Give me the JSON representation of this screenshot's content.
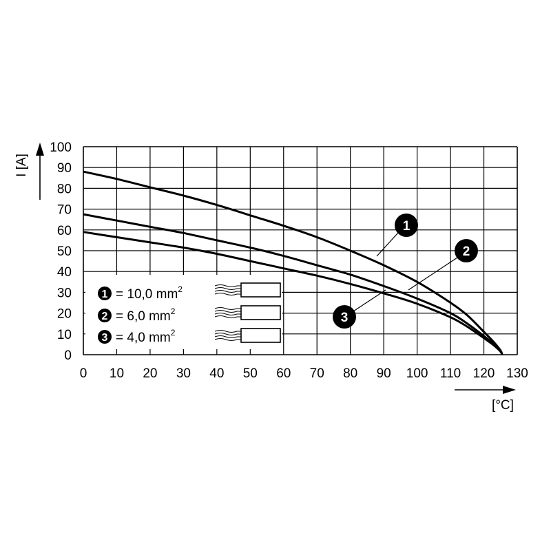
{
  "chart_data": {
    "type": "line",
    "xlabel": "[°C]",
    "ylabel": "I [A]",
    "xlim": [
      0,
      130
    ],
    "ylim": [
      0,
      100
    ],
    "x_ticks": [
      "0",
      "10",
      "20",
      "30",
      "40",
      "50",
      "60",
      "70",
      "80",
      "90",
      "100",
      "110",
      "120",
      "130"
    ],
    "y_ticks": [
      "0",
      "10",
      "20",
      "30",
      "40",
      "50",
      "60",
      "70",
      "80",
      "90",
      "100"
    ],
    "grid": true,
    "series": [
      {
        "name": "1",
        "x": [
          0,
          10,
          20,
          30,
          40,
          50,
          60,
          70,
          80,
          90,
          100,
          110,
          115,
          120,
          123,
          125,
          125.5
        ],
        "y": [
          88,
          84.5,
          80.5,
          76.5,
          72,
          67,
          62,
          56.5,
          50,
          43,
          35,
          25,
          19,
          11,
          6,
          2,
          0
        ]
      },
      {
        "name": "2",
        "x": [
          0,
          10,
          20,
          30,
          40,
          50,
          60,
          70,
          80,
          90,
          100,
          110,
          115,
          120,
          123,
          125,
          125.5
        ],
        "y": [
          67.5,
          64.5,
          61.5,
          58.5,
          55,
          51.5,
          47.5,
          43,
          38.5,
          33,
          27,
          20,
          15,
          9,
          5,
          1.5,
          0
        ]
      },
      {
        "name": "3",
        "x": [
          0,
          10,
          20,
          30,
          40,
          50,
          60,
          70,
          80,
          90,
          100,
          110,
          115,
          120,
          123,
          125,
          125.5
        ],
        "y": [
          59,
          56.5,
          54,
          51.5,
          48.5,
          45,
          41.5,
          38,
          34,
          29.5,
          24.5,
          18,
          13.5,
          8,
          4.5,
          1.5,
          0
        ]
      }
    ],
    "callouts": [
      {
        "label": "1",
        "at_x": 88.5,
        "at_y": 48
      },
      {
        "label": "2",
        "at_x": 98,
        "at_y": 31
      },
      {
        "label": "3",
        "at_x": 91,
        "at_y": 30
      }
    ]
  },
  "legend": [
    {
      "num": "1",
      "text": "= 10,0 mm",
      "sup": "2"
    },
    {
      "num": "2",
      "text": "= 6,0 mm",
      "sup": "2"
    },
    {
      "num": "3",
      "text": "= 4,0 mm",
      "sup": "2"
    }
  ]
}
